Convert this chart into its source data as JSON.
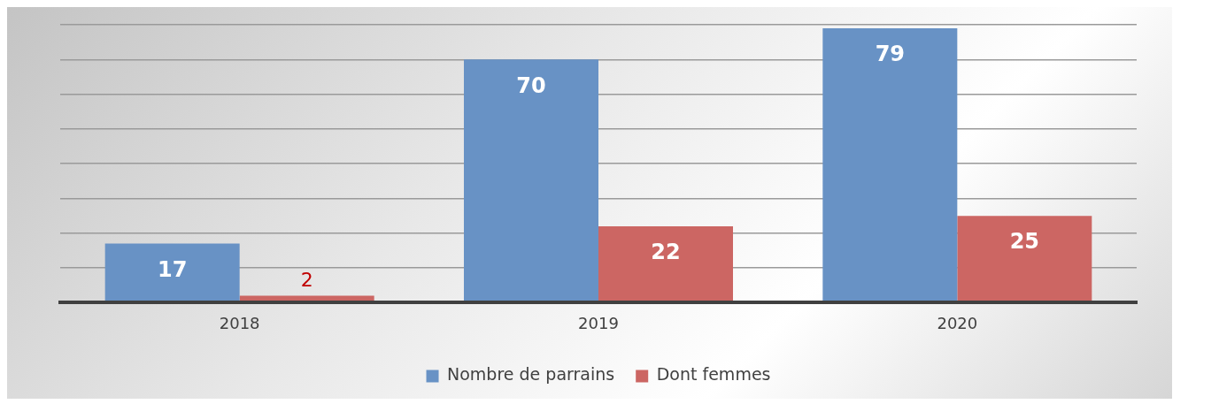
{
  "chart_data": {
    "type": "bar",
    "categories": [
      "2018",
      "2019",
      "2020"
    ],
    "series": [
      {
        "name": "Nombre de parrains",
        "color": "#6892c5",
        "values": [
          17,
          70,
          79
        ]
      },
      {
        "name": "Dont femmes",
        "color": "#cc6663",
        "values": [
          2,
          22,
          25
        ]
      }
    ],
    "grid": "y",
    "data_labels": true,
    "legend": "bottom",
    "tick_labels": "x"
  }
}
